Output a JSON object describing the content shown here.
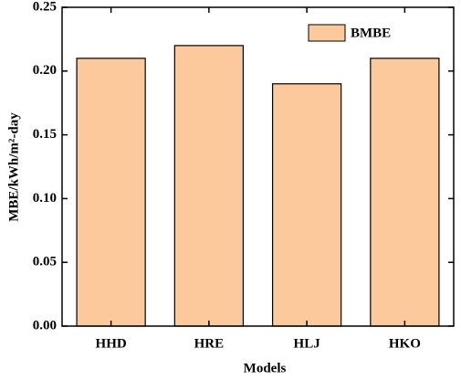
{
  "chart_data": {
    "type": "bar",
    "x_label": "Models",
    "y_label": "MBE/kWh/m²-day",
    "categories": [
      "HHD",
      "HRE",
      "HLJ",
      "HKO"
    ],
    "series": [
      {
        "name": "BMBE",
        "color": "#fbc99b",
        "values": [
          0.21,
          0.22,
          0.19,
          0.21
        ]
      }
    ],
    "ylim": [
      0,
      0.25
    ],
    "yticks": [
      {
        "value": 0,
        "label": "0.00"
      },
      {
        "value": 0.05,
        "label": "0.05"
      },
      {
        "value": 0.1,
        "label": "0.10"
      },
      {
        "value": 0.15,
        "label": "0.15"
      },
      {
        "value": 0.2,
        "label": "0.20"
      },
      {
        "value": 0.25,
        "label": "0.25"
      }
    ],
    "legend": "top-right"
  }
}
